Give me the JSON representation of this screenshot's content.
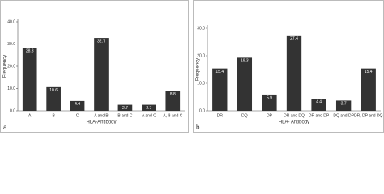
{
  "chart_data": [
    {
      "type": "bar",
      "panel": "a",
      "xlabel": "HLA-Antibody",
      "ylabel": "Frequency",
      "categories": [
        "A",
        "B",
        "C",
        "A and B",
        "B and C",
        "A and C",
        "A, B and C"
      ],
      "values": [
        28.3,
        10.6,
        4.4,
        32.7,
        2.7,
        2.7,
        8.8
      ],
      "color": "#333333",
      "ylim": [
        0,
        40
      ],
      "yticks": [
        {
          "value": 0,
          "label": "0.0"
        },
        {
          "value": 10,
          "label": "10.0"
        },
        {
          "value": 20,
          "label": "20.0"
        },
        {
          "value": 30,
          "label": "30.0"
        },
        {
          "value": 40,
          "label": "40.0"
        }
      ]
    },
    {
      "type": "bar",
      "panel": "b",
      "xlabel": "HLA- Antibody",
      "ylabel": "Frequency",
      "categories": [
        "DR",
        "DQ",
        "DP",
        "DR and DQ",
        "DR and DP",
        "DQ and DP",
        "DR, DP and DQ"
      ],
      "values": [
        15.4,
        19.3,
        5.9,
        27.4,
        4.4,
        3.7,
        15.4
      ],
      "color": "#333333",
      "ylim": [
        0,
        30
      ],
      "yticks": [
        {
          "value": 0,
          "label": "0.0"
        },
        {
          "value": 10,
          "label": "10.0"
        },
        {
          "value": 20,
          "label": "20.0"
        },
        {
          "value": 30,
          "label": "30.0"
        }
      ]
    }
  ]
}
